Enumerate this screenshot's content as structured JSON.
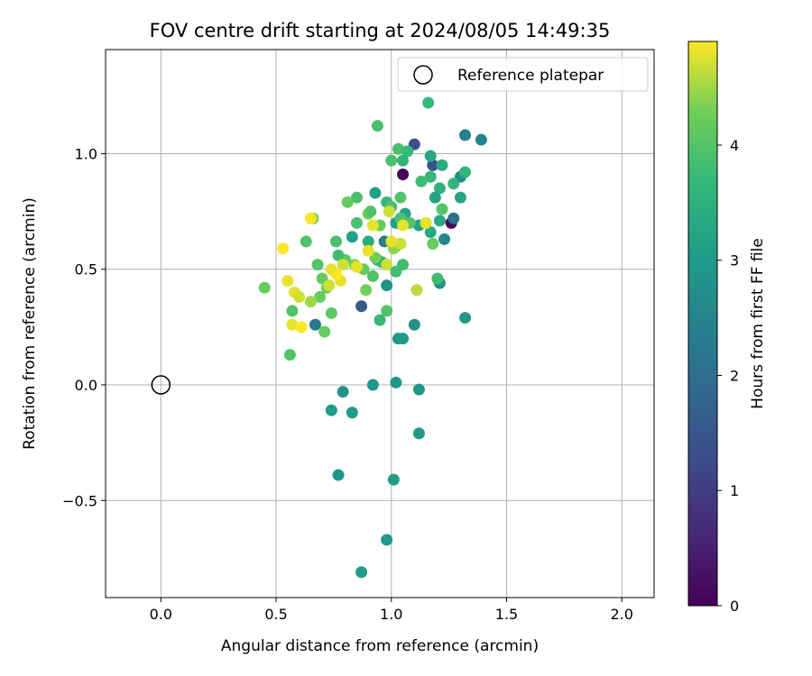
{
  "chart_data": {
    "type": "scatter",
    "title": "FOV centre drift starting at 2024/08/05 14:49:35",
    "xlabel": "Angular distance from reference (arcmin)",
    "ylabel": "Rotation from reference (arcmin)",
    "xlim": [
      -0.24,
      2.14
    ],
    "ylim": [
      -0.92,
      1.45
    ],
    "xticks": [
      0.0,
      0.5,
      1.0,
      1.5,
      2.0
    ],
    "xtick_labels": [
      "0.0",
      "0.5",
      "1.0",
      "1.5",
      "2.0"
    ],
    "yticks": [
      -0.5,
      0.0,
      0.5,
      1.0
    ],
    "ytick_labels": [
      "−0.5",
      "0.0",
      "0.5",
      "1.0"
    ],
    "grid": true,
    "legend": {
      "placement": "top-right",
      "entries": [
        "Reference platepar"
      ]
    },
    "reference_point": {
      "x": 0.0,
      "y": 0.0
    },
    "colorbar": {
      "label": "Hours from first FF file",
      "colormap": "viridis",
      "range": [
        0,
        4.9
      ],
      "ticks": [
        0,
        1,
        2,
        3,
        4
      ],
      "tick_labels": [
        "0",
        "1",
        "2",
        "3",
        "4"
      ]
    },
    "points": [
      {
        "x": 1.05,
        "y": 0.91,
        "c": 0.05
      },
      {
        "x": 1.26,
        "y": 0.7,
        "c": 0.1
      },
      {
        "x": 1.1,
        "y": 1.04,
        "c": 1.3
      },
      {
        "x": 1.18,
        "y": 0.95,
        "c": 1.4
      },
      {
        "x": 0.87,
        "y": 0.34,
        "c": 1.5
      },
      {
        "x": 1.27,
        "y": 0.72,
        "c": 2.0
      },
      {
        "x": 0.67,
        "y": 0.26,
        "c": 2.2
      },
      {
        "x": 1.32,
        "y": 1.08,
        "c": 2.4
      },
      {
        "x": 1.39,
        "y": 1.06,
        "c": 2.5
      },
      {
        "x": 1.3,
        "y": 0.9,
        "c": 2.7
      },
      {
        "x": 0.97,
        "y": 0.62,
        "c": 2.3
      },
      {
        "x": 1.23,
        "y": 0.63,
        "c": 2.6
      },
      {
        "x": 1.21,
        "y": 0.44,
        "c": 2.8
      },
      {
        "x": 1.1,
        "y": 0.26,
        "c": 2.8
      },
      {
        "x": 0.98,
        "y": 0.43,
        "c": 2.8
      },
      {
        "x": 1.32,
        "y": 0.29,
        "c": 2.9
      },
      {
        "x": 1.03,
        "y": 0.2,
        "c": 2.9
      },
      {
        "x": 1.05,
        "y": 0.2,
        "c": 3.0
      },
      {
        "x": 0.79,
        "y": -0.03,
        "c": 2.8
      },
      {
        "x": 0.92,
        "y": 0.0,
        "c": 2.9
      },
      {
        "x": 1.02,
        "y": 0.01,
        "c": 2.9
      },
      {
        "x": 1.12,
        "y": -0.02,
        "c": 2.9
      },
      {
        "x": 0.74,
        "y": -0.11,
        "c": 3.0
      },
      {
        "x": 0.83,
        "y": -0.12,
        "c": 3.0
      },
      {
        "x": 1.12,
        "y": -0.21,
        "c": 3.0
      },
      {
        "x": 0.77,
        "y": -0.39,
        "c": 2.9
      },
      {
        "x": 1.01,
        "y": -0.41,
        "c": 3.0
      },
      {
        "x": 0.98,
        "y": -0.67,
        "c": 3.0
      },
      {
        "x": 0.87,
        "y": -0.81,
        "c": 3.0
      },
      {
        "x": 0.83,
        "y": 0.64,
        "c": 3.1
      },
      {
        "x": 0.93,
        "y": 0.83,
        "c": 3.1
      },
      {
        "x": 1.02,
        "y": 0.7,
        "c": 3.1
      },
      {
        "x": 1.06,
        "y": 0.74,
        "c": 3.2
      },
      {
        "x": 1.12,
        "y": 0.69,
        "c": 3.2
      },
      {
        "x": 1.17,
        "y": 0.66,
        "c": 3.3
      },
      {
        "x": 1.21,
        "y": 0.71,
        "c": 3.3
      },
      {
        "x": 1.22,
        "y": 0.95,
        "c": 3.4
      },
      {
        "x": 1.17,
        "y": 0.99,
        "c": 3.3
      },
      {
        "x": 1.19,
        "y": 0.81,
        "c": 3.2
      },
      {
        "x": 1.3,
        "y": 0.81,
        "c": 3.2
      },
      {
        "x": 1.27,
        "y": 0.87,
        "c": 3.6
      },
      {
        "x": 1.32,
        "y": 0.92,
        "c": 3.6
      },
      {
        "x": 1.21,
        "y": 0.85,
        "c": 3.5
      },
      {
        "x": 1.17,
        "y": 0.9,
        "c": 3.7
      },
      {
        "x": 1.13,
        "y": 0.88,
        "c": 3.8
      },
      {
        "x": 1.0,
        "y": 0.97,
        "c": 3.9
      },
      {
        "x": 1.03,
        "y": 1.02,
        "c": 3.9
      },
      {
        "x": 1.07,
        "y": 1.01,
        "c": 3.7
      },
      {
        "x": 0.94,
        "y": 1.12,
        "c": 3.9
      },
      {
        "x": 1.16,
        "y": 1.22,
        "c": 3.7
      },
      {
        "x": 1.05,
        "y": 0.97,
        "c": 3.6
      },
      {
        "x": 0.94,
        "y": 0.54,
        "c": 3.5
      },
      {
        "x": 1.02,
        "y": 0.6,
        "c": 3.5
      },
      {
        "x": 0.9,
        "y": 0.62,
        "c": 3.4
      },
      {
        "x": 0.96,
        "y": 0.53,
        "c": 3.6
      },
      {
        "x": 0.95,
        "y": 0.28,
        "c": 3.7
      },
      {
        "x": 0.98,
        "y": 0.79,
        "c": 3.7
      },
      {
        "x": 1.0,
        "y": 0.77,
        "c": 3.9
      },
      {
        "x": 1.04,
        "y": 0.81,
        "c": 4.0
      },
      {
        "x": 1.04,
        "y": 0.72,
        "c": 3.9
      },
      {
        "x": 1.08,
        "y": 0.7,
        "c": 4.0
      },
      {
        "x": 1.15,
        "y": 0.7,
        "c": 4.1
      },
      {
        "x": 1.22,
        "y": 0.76,
        "c": 4.0
      },
      {
        "x": 1.18,
        "y": 0.61,
        "c": 4.2
      },
      {
        "x": 1.2,
        "y": 0.46,
        "c": 3.8
      },
      {
        "x": 1.02,
        "y": 0.49,
        "c": 3.8
      },
      {
        "x": 1.05,
        "y": 0.52,
        "c": 3.8
      },
      {
        "x": 0.98,
        "y": 0.52,
        "c": 4.2
      },
      {
        "x": 0.98,
        "y": 0.32,
        "c": 4.0
      },
      {
        "x": 0.92,
        "y": 0.47,
        "c": 4.0
      },
      {
        "x": 0.88,
        "y": 0.5,
        "c": 4.2
      },
      {
        "x": 0.84,
        "y": 0.52,
        "c": 4.4
      },
      {
        "x": 0.8,
        "y": 0.54,
        "c": 4.1
      },
      {
        "x": 0.77,
        "y": 0.56,
        "c": 3.8
      },
      {
        "x": 0.76,
        "y": 0.62,
        "c": 3.9
      },
      {
        "x": 0.85,
        "y": 0.7,
        "c": 3.9
      },
      {
        "x": 0.85,
        "y": 0.81,
        "c": 3.9
      },
      {
        "x": 0.81,
        "y": 0.79,
        "c": 4.2
      },
      {
        "x": 0.9,
        "y": 0.74,
        "c": 4.3
      },
      {
        "x": 0.91,
        "y": 0.75,
        "c": 4.0
      },
      {
        "x": 0.95,
        "y": 0.69,
        "c": 4.2
      },
      {
        "x": 0.66,
        "y": 0.72,
        "c": 4.3
      },
      {
        "x": 0.63,
        "y": 0.62,
        "c": 4.0
      },
      {
        "x": 0.68,
        "y": 0.52,
        "c": 4.0
      },
      {
        "x": 0.7,
        "y": 0.46,
        "c": 4.2
      },
      {
        "x": 0.72,
        "y": 0.42,
        "c": 4.3
      },
      {
        "x": 0.69,
        "y": 0.38,
        "c": 4.2
      },
      {
        "x": 0.74,
        "y": 0.31,
        "c": 4.1
      },
      {
        "x": 0.71,
        "y": 0.23,
        "c": 4.2
      },
      {
        "x": 0.57,
        "y": 0.32,
        "c": 4.0
      },
      {
        "x": 0.56,
        "y": 0.13,
        "c": 4.0
      },
      {
        "x": 0.45,
        "y": 0.42,
        "c": 4.2
      },
      {
        "x": 0.89,
        "y": 0.41,
        "c": 4.3
      },
      {
        "x": 0.93,
        "y": 0.55,
        "c": 4.3
      },
      {
        "x": 1.01,
        "y": 0.59,
        "c": 4.4
      },
      {
        "x": 1.11,
        "y": 0.41,
        "c": 4.6
      },
      {
        "x": 1.04,
        "y": 0.61,
        "c": 4.7
      },
      {
        "x": 1.0,
        "y": 0.62,
        "c": 4.8
      },
      {
        "x": 0.98,
        "y": 0.52,
        "c": 4.7
      },
      {
        "x": 0.92,
        "y": 0.69,
        "c": 4.8
      },
      {
        "x": 0.99,
        "y": 0.75,
        "c": 4.7
      },
      {
        "x": 1.05,
        "y": 0.69,
        "c": 4.8
      },
      {
        "x": 1.15,
        "y": 0.7,
        "c": 4.8
      },
      {
        "x": 0.9,
        "y": 0.58,
        "c": 4.8
      },
      {
        "x": 0.85,
        "y": 0.51,
        "c": 4.8
      },
      {
        "x": 0.79,
        "y": 0.52,
        "c": 4.7
      },
      {
        "x": 0.78,
        "y": 0.45,
        "c": 4.8
      },
      {
        "x": 0.73,
        "y": 0.43,
        "c": 4.7
      },
      {
        "x": 0.76,
        "y": 0.48,
        "c": 4.9
      },
      {
        "x": 0.74,
        "y": 0.5,
        "c": 4.8
      },
      {
        "x": 0.65,
        "y": 0.72,
        "c": 4.9
      },
      {
        "x": 0.53,
        "y": 0.59,
        "c": 4.9
      },
      {
        "x": 0.55,
        "y": 0.45,
        "c": 4.8
      },
      {
        "x": 0.58,
        "y": 0.4,
        "c": 4.8
      },
      {
        "x": 0.6,
        "y": 0.38,
        "c": 4.7
      },
      {
        "x": 0.65,
        "y": 0.36,
        "c": 4.5
      },
      {
        "x": 0.57,
        "y": 0.26,
        "c": 4.8
      },
      {
        "x": 0.61,
        "y": 0.25,
        "c": 4.9
      }
    ]
  }
}
